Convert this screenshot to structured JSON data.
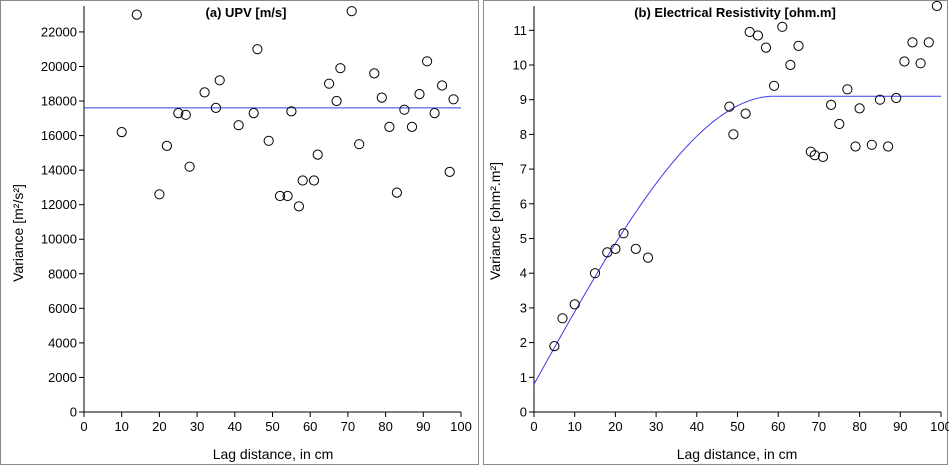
{
  "chart_data": [
    {
      "type": "scatter",
      "title": "(a) UPV [m/s]",
      "xlabel": "Lag distance, in cm",
      "ylabel": "Variance [m²/s²]",
      "xlim": [
        0,
        100
      ],
      "ylim": [
        0,
        23500
      ],
      "xticks": [
        0,
        10,
        20,
        30,
        40,
        50,
        60,
        70,
        80,
        90,
        100
      ],
      "yticks": [
        0,
        2000,
        4000,
        6000,
        8000,
        10000,
        12000,
        14000,
        16000,
        18000,
        20000,
        22000
      ],
      "grid": false,
      "legend": "none",
      "marker_color": "#000000",
      "model_color": "#3b3be8",
      "points": [
        [
          10,
          16200
        ],
        [
          14,
          23000
        ],
        [
          20,
          12600
        ],
        [
          22,
          15400
        ],
        [
          25,
          17300
        ],
        [
          27,
          17200
        ],
        [
          28,
          14200
        ],
        [
          32,
          18500
        ],
        [
          35,
          17600
        ],
        [
          36,
          19200
        ],
        [
          41,
          16600
        ],
        [
          45,
          17300
        ],
        [
          46,
          21000
        ],
        [
          49,
          15700
        ],
        [
          52,
          12500
        ],
        [
          54,
          12500
        ],
        [
          55,
          17400
        ],
        [
          57,
          11900
        ],
        [
          58,
          13400
        ],
        [
          61,
          13400
        ],
        [
          62,
          14900
        ],
        [
          65,
          19000
        ],
        [
          67,
          18000
        ],
        [
          68,
          19900
        ],
        [
          71,
          23200
        ],
        [
          73,
          15500
        ],
        [
          77,
          19600
        ],
        [
          79,
          18200
        ],
        [
          81,
          16500
        ],
        [
          83,
          12700
        ],
        [
          85,
          17500
        ],
        [
          87,
          16500
        ],
        [
          89,
          18400
        ],
        [
          91,
          20300
        ],
        [
          93,
          17300
        ],
        [
          95,
          18900
        ],
        [
          97,
          13900
        ],
        [
          98,
          18100
        ]
      ],
      "model": {
        "kind": "nugget",
        "sill": 17600
      }
    },
    {
      "type": "scatter",
      "title": "(b) Electrical Resistivity [ohm.m]",
      "xlabel": "Lag distance, in cm",
      "ylabel": "Variance [ohm².m²]",
      "xlim": [
        0,
        100
      ],
      "ylim": [
        0,
        11.7
      ],
      "xticks": [
        0,
        10,
        20,
        30,
        40,
        50,
        60,
        70,
        80,
        90,
        100
      ],
      "yticks": [
        0,
        1,
        2,
        3,
        4,
        5,
        6,
        7,
        8,
        9,
        10,
        11
      ],
      "grid": false,
      "legend": "none",
      "marker_color": "#000000",
      "model_color": "#3b3be8",
      "points": [
        [
          5,
          1.9
        ],
        [
          7,
          2.7
        ],
        [
          10,
          3.1
        ],
        [
          15,
          4.0
        ],
        [
          18,
          4.6
        ],
        [
          20,
          4.7
        ],
        [
          22,
          5.15
        ],
        [
          25,
          4.7
        ],
        [
          28,
          4.45
        ],
        [
          48,
          8.8
        ],
        [
          49,
          8.0
        ],
        [
          52,
          8.6
        ],
        [
          53,
          10.95
        ],
        [
          55,
          10.85
        ],
        [
          57,
          10.5
        ],
        [
          59,
          9.4
        ],
        [
          61,
          11.1
        ],
        [
          63,
          10.0
        ],
        [
          65,
          10.55
        ],
        [
          68,
          7.5
        ],
        [
          69,
          7.4
        ],
        [
          71,
          7.35
        ],
        [
          73,
          8.85
        ],
        [
          75,
          8.3
        ],
        [
          77,
          9.3
        ],
        [
          79,
          7.65
        ],
        [
          80,
          8.75
        ],
        [
          83,
          7.7
        ],
        [
          85,
          9.0
        ],
        [
          87,
          7.65
        ],
        [
          89,
          9.05
        ],
        [
          91,
          10.1
        ],
        [
          93,
          10.65
        ],
        [
          95,
          10.05
        ],
        [
          97,
          10.65
        ],
        [
          99,
          11.7
        ]
      ],
      "model": {
        "kind": "spherical",
        "nugget": 0.8,
        "sill": 9.1,
        "range": 59
      }
    }
  ]
}
